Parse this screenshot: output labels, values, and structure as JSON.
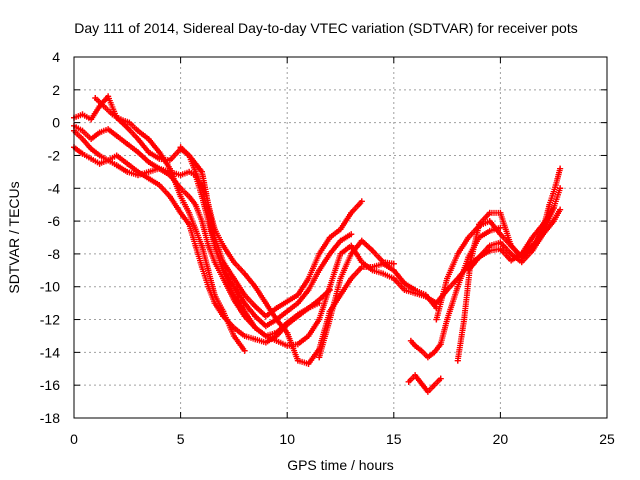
{
  "chart_data": {
    "type": "scatter",
    "title": "Day 111 of 2014, Sidereal Day-to-day VTEC variation (SDTVAR) for receiver pots",
    "xlabel": "GPS time / hours",
    "ylabel": "SDTVAR / TECUs",
    "xlim": [
      0,
      25
    ],
    "ylim": [
      -18,
      4
    ],
    "xticks": [
      "0",
      "5",
      "10",
      "15",
      "20",
      "25"
    ],
    "yticks": [
      "4",
      "2",
      "0",
      "-2",
      "-4",
      "-6",
      "-8",
      "-10",
      "-12",
      "-14",
      "-16",
      "-18"
    ],
    "grid": true,
    "marker": "plus",
    "color": "#ff0000",
    "series": [
      {
        "x": [
          0.0,
          0.4,
          0.8,
          1.2,
          1.6,
          2.0,
          2.5,
          3.0,
          3.5,
          4.0,
          4.5,
          5.0,
          5.4,
          5.7,
          6.0,
          6.3,
          6.6,
          7.0,
          7.5,
          8.0,
          8.5,
          9.0,
          9.5,
          10.0,
          10.5,
          11.0,
          11.5,
          12.0,
          12.5,
          13.0,
          13.5
        ],
        "y": [
          0.3,
          0.5,
          0.2,
          1.0,
          1.6,
          0.3,
          -0.3,
          -1.0,
          -1.8,
          -2.2,
          -2.3,
          -1.6,
          -2.0,
          -2.5,
          -3.0,
          -5.0,
          -7.0,
          -8.5,
          -9.5,
          -10.5,
          -11.2,
          -11.8,
          -11.3,
          -10.9,
          -10.5,
          -9.5,
          -8.0,
          -7.0,
          -6.5,
          -5.5,
          -4.8
        ]
      },
      {
        "x": [
          0.0,
          0.4,
          0.8,
          1.2,
          1.6,
          2.0,
          2.5,
          3.0,
          3.5,
          4.0,
          4.5,
          5.0,
          5.4,
          5.7,
          6.0,
          6.3,
          6.6,
          7.0,
          7.5,
          8.0,
          8.5,
          9.0,
          9.5,
          10.0,
          10.5,
          11.0,
          11.5,
          12.0,
          12.5,
          13.0
        ],
        "y": [
          -0.2,
          -0.5,
          -1.0,
          -0.6,
          -0.4,
          -0.8,
          -1.3,
          -1.8,
          -2.4,
          -2.8,
          -3.0,
          -3.2,
          -3.0,
          -3.2,
          -4.5,
          -6.0,
          -7.5,
          -9.0,
          -10.0,
          -11.0,
          -11.8,
          -12.4,
          -12.0,
          -11.5,
          -11.0,
          -10.2,
          -9.0,
          -8.0,
          -7.2,
          -6.8
        ]
      },
      {
        "x": [
          0.0,
          0.4,
          0.8,
          1.2,
          1.6,
          2.0,
          2.5,
          3.0,
          3.5,
          4.0,
          4.5,
          5.0,
          5.4,
          5.7,
          6.0,
          6.3,
          6.6,
          7.0,
          7.5,
          8.0,
          8.5,
          9.0,
          9.5,
          10.0,
          10.5,
          11.0,
          11.5,
          12.0
        ],
        "y": [
          -0.5,
          -1.0,
          -1.6,
          -2.0,
          -2.3,
          -2.6,
          -3.0,
          -3.2,
          -3.0,
          -2.8,
          -3.2,
          -4.0,
          -4.5,
          -5.0,
          -6.0,
          -7.5,
          -8.5,
          -9.5,
          -10.8,
          -11.8,
          -12.5,
          -13.0,
          -12.8,
          -12.2,
          -11.7,
          -11.3,
          -10.8,
          -10.2
        ]
      },
      {
        "x": [
          0.0,
          0.4,
          0.8,
          1.2,
          1.6,
          2.0,
          2.5,
          3.0,
          3.5,
          4.0,
          4.5,
          5.0,
          5.4,
          5.7,
          6.0,
          6.3,
          6.6,
          7.0,
          7.5,
          8.0,
          8.5,
          9.0,
          9.5,
          10.0,
          10.5,
          11.0,
          11.5
        ],
        "y": [
          -1.5,
          -1.9,
          -2.2,
          -2.5,
          -2.3,
          -2.0,
          -2.5,
          -3.0,
          -3.4,
          -3.8,
          -4.5,
          -5.5,
          -6.2,
          -7.5,
          -8.8,
          -10.0,
          -11.0,
          -11.8,
          -12.5,
          -13.0,
          -13.2,
          -13.4,
          -13.0,
          -12.3,
          -11.8,
          -11.3,
          -11.0
        ]
      },
      {
        "x": [
          1.0,
          1.4,
          1.8,
          2.2,
          2.6,
          3.0,
          3.5,
          4.0,
          4.5,
          5.0,
          5.4,
          5.7,
          6.0,
          6.3,
          6.6,
          7.0,
          7.5,
          8.0
        ],
        "y": [
          1.5,
          1.0,
          0.5,
          0.2,
          0.0,
          -0.5,
          -1.0,
          -1.8,
          -2.8,
          -4.5,
          -5.5,
          -6.5,
          -7.5,
          -9.0,
          -10.5,
          -11.5,
          -13.0,
          -13.9
        ]
      },
      {
        "x": [
          5.0,
          5.4,
          5.7,
          6.0,
          6.3,
          6.6,
          7.0,
          7.5,
          8.0,
          8.5,
          9.0,
          9.5,
          10.0,
          10.5,
          11.0,
          11.5,
          12.0,
          12.5,
          13.0,
          13.5,
          14.0,
          14.5,
          15.0,
          15.5,
          16.0,
          16.5,
          17.0,
          17.5,
          18.0,
          18.5,
          19.0,
          19.5,
          20.0,
          20.5,
          21.0,
          21.5,
          22.0,
          22.5
        ],
        "y": [
          -1.5,
          -2.0,
          -3.0,
          -4.0,
          -5.5,
          -7.5,
          -9.0,
          -10.5,
          -11.5,
          -12.5,
          -13.0,
          -13.3,
          -13.6,
          -13.5,
          -13.0,
          -12.0,
          -10.0,
          -8.0,
          -7.5,
          -8.5,
          -9.0,
          -9.2,
          -9.5,
          -10.2,
          -10.4,
          -10.6,
          -11.0,
          -10.2,
          -9.5,
          -8.7,
          -8.2,
          -7.8,
          -7.7,
          -8.4,
          -8.0,
          -7.0,
          -6.2,
          -5.2
        ]
      },
      {
        "x": [
          6.0,
          6.3,
          6.6,
          7.0,
          7.5,
          8.0,
          8.5,
          9.0,
          9.5,
          10.0,
          10.5,
          11.0,
          11.5,
          12.0,
          12.5,
          13.0,
          13.5,
          14.0,
          14.5,
          15.0,
          15.5,
          16.0,
          16.5,
          17.0
        ],
        "y": [
          -3.0,
          -5.0,
          -6.5,
          -7.5,
          -8.5,
          -9.2,
          -10.0,
          -11.0,
          -12.0,
          -12.8,
          -14.5,
          -14.7,
          -13.8,
          -11.5,
          -10.5,
          -9.5,
          -8.8,
          -8.8,
          -8.6,
          -9.0,
          -9.8,
          -10.2,
          -10.5,
          -11.3
        ]
      },
      {
        "x": [
          11.5,
          12.0,
          12.5,
          13.0,
          13.5,
          14.0,
          14.5,
          15.0
        ],
        "y": [
          -14.3,
          -12.0,
          -9.5,
          -8.0,
          -7.2,
          -7.8,
          -8.5,
          -8.6
        ]
      },
      {
        "x": [
          15.8,
          16.0,
          16.3,
          16.6,
          16.9,
          17.2,
          17.5,
          18.0,
          18.5,
          19.0,
          19.5,
          20.0
        ],
        "y": [
          -13.3,
          -13.6,
          -13.9,
          -14.3,
          -14.0,
          -13.5,
          -12.0,
          -10.0,
          -8.2,
          -7.0,
          -6.6,
          -6.4
        ]
      },
      {
        "x": [
          15.7,
          16.0,
          16.3,
          16.6,
          16.9,
          17.2
        ],
        "y": [
          -15.8,
          -15.4,
          -15.9,
          -16.4,
          -16.0,
          -15.6
        ]
      },
      {
        "x": [
          17.0,
          17.5,
          18.0,
          18.5,
          19.0,
          19.5,
          20.0,
          20.5,
          21.0,
          21.5,
          22.0,
          22.5,
          22.8
        ],
        "y": [
          -12.0,
          -9.5,
          -8.0,
          -7.0,
          -6.3,
          -6.0,
          -6.8,
          -7.5,
          -8.2,
          -7.5,
          -6.8,
          -6.0,
          -5.3
        ]
      },
      {
        "x": [
          18.0,
          18.3,
          18.6,
          19.0,
          19.5,
          20.0,
          20.5,
          21.0,
          21.5,
          22.0,
          22.3,
          22.6,
          22.8
        ],
        "y": [
          -14.5,
          -12.0,
          -8.5,
          -6.2,
          -5.5,
          -5.5,
          -7.5,
          -8.2,
          -7.6,
          -6.5,
          -5.0,
          -3.8,
          -2.8
        ]
      },
      {
        "x": [
          18.5,
          19.0,
          19.5,
          20.0,
          20.5,
          21.0,
          21.5,
          22.0,
          22.5,
          22.8
        ],
        "y": [
          -9.0,
          -8.2,
          -7.5,
          -7.3,
          -8.0,
          -8.5,
          -7.8,
          -6.8,
          -5.2,
          -4.0
        ]
      }
    ]
  }
}
